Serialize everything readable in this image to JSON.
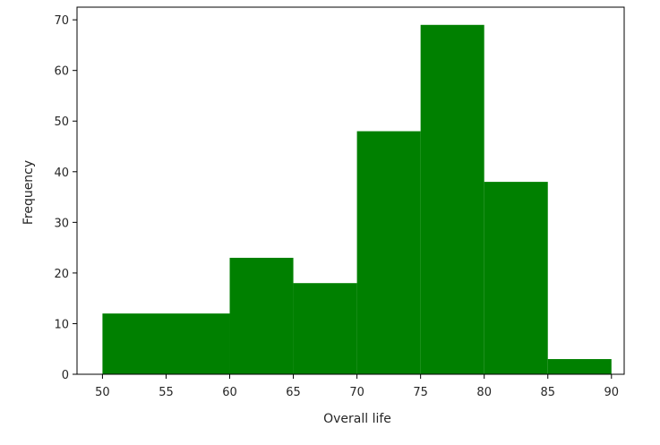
{
  "chart_data": {
    "type": "bar",
    "subtype": "histogram",
    "title": "",
    "xlabel": "Overall life",
    "ylabel": "Frequency",
    "bins": [
      {
        "start": 50,
        "end": 60,
        "count": 12
      },
      {
        "start": 60,
        "end": 65,
        "count": 23
      },
      {
        "start": 65,
        "end": 70,
        "count": 18
      },
      {
        "start": 70,
        "end": 75,
        "count": 48
      },
      {
        "start": 75,
        "end": 80,
        "count": 69
      },
      {
        "start": 80,
        "end": 85,
        "count": 38
      },
      {
        "start": 85,
        "end": 90,
        "count": 3
      }
    ],
    "xlim": [
      48,
      91
    ],
    "ylim": [
      0,
      72.5
    ],
    "xticks": [
      "50",
      "55",
      "60",
      "65",
      "70",
      "75",
      "80",
      "85",
      "90"
    ],
    "yticks": [
      "0",
      "10",
      "20",
      "30",
      "40",
      "50",
      "60",
      "70"
    ],
    "bar_color": "#008000",
    "grid": false,
    "legend": "none"
  }
}
